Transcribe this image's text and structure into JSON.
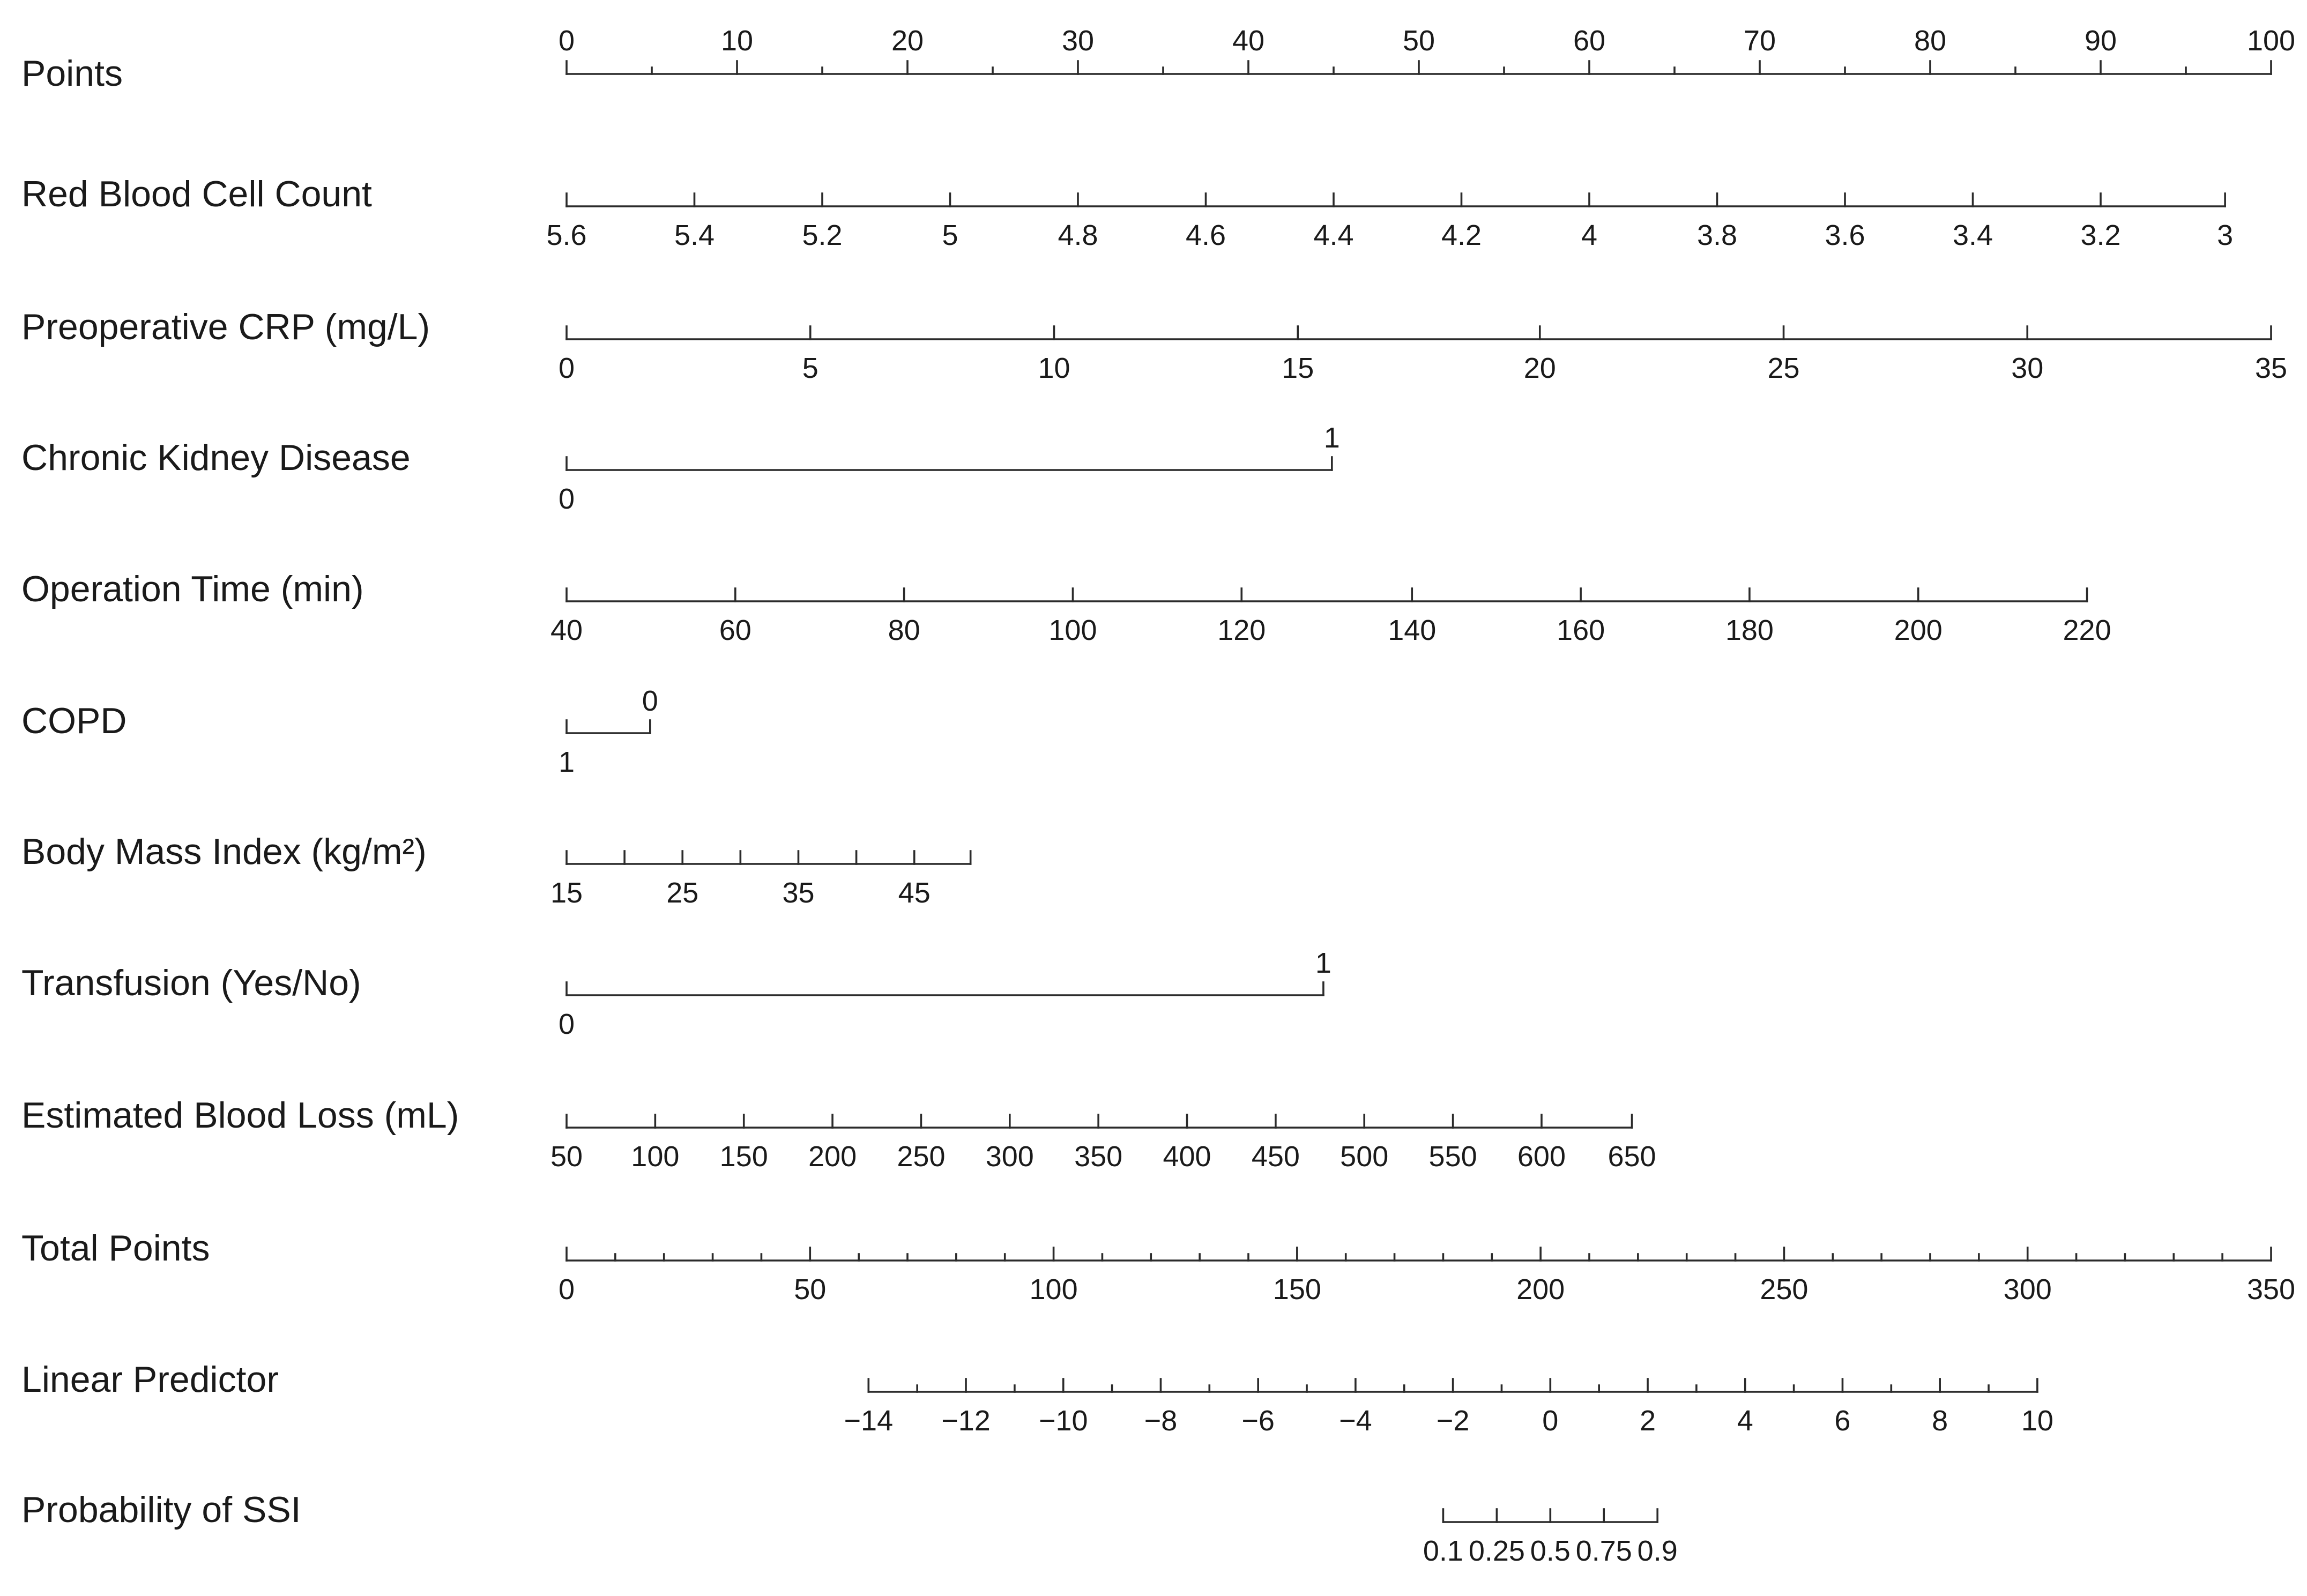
{
  "chart_data": {
    "type": "nomogram",
    "title": "",
    "points_scale": {
      "label": "Points",
      "min": 0,
      "max": 100,
      "major_ticks": [
        0,
        10,
        20,
        30,
        40,
        50,
        60,
        70,
        80,
        90,
        100
      ],
      "minor_step": 5
    },
    "rows": [
      {
        "label": "Red Blood Cell Count",
        "labels_position": "below",
        "ticks": [
          {
            "label": "5.6",
            "points": 0
          },
          {
            "label": "5.4",
            "points": 7.5
          },
          {
            "label": "5.2",
            "points": 15
          },
          {
            "label": "5",
            "points": 22.5
          },
          {
            "label": "4.8",
            "points": 30
          },
          {
            "label": "4.6",
            "points": 37.5
          },
          {
            "label": "4.4",
            "points": 45
          },
          {
            "label": "4.2",
            "points": 52.5
          },
          {
            "label": "4",
            "points": 60
          },
          {
            "label": "3.8",
            "points": 67.5
          },
          {
            "label": "3.6",
            "points": 75
          },
          {
            "label": "3.4",
            "points": 82.5
          },
          {
            "label": "3.2",
            "points": 90
          },
          {
            "label": "3",
            "points": 97.3
          }
        ]
      },
      {
        "label": "Preoperative CRP (mg/L)",
        "labels_position": "below",
        "ticks": [
          {
            "label": "0",
            "points": 0
          },
          {
            "label": "5",
            "points": 14.3
          },
          {
            "label": "10",
            "points": 28.6
          },
          {
            "label": "15",
            "points": 42.9
          },
          {
            "label": "20",
            "points": 57.1
          },
          {
            "label": "25",
            "points": 71.4
          },
          {
            "label": "30",
            "points": 85.7
          },
          {
            "label": "35",
            "points": 100
          }
        ]
      },
      {
        "label": "Chronic Kidney Disease",
        "labels_position": "split",
        "ticks": [
          {
            "label": "0",
            "points": 0,
            "side": "below"
          },
          {
            "label": "1",
            "points": 44.9,
            "side": "above"
          }
        ]
      },
      {
        "label": "Operation Time (min)",
        "labels_position": "below",
        "ticks": [
          {
            "label": "40",
            "points": 0
          },
          {
            "label": "60",
            "points": 9.9
          },
          {
            "label": "80",
            "points": 19.8
          },
          {
            "label": "100",
            "points": 29.7
          },
          {
            "label": "120",
            "points": 39.6
          },
          {
            "label": "140",
            "points": 49.6
          },
          {
            "label": "160",
            "points": 59.5
          },
          {
            "label": "180",
            "points": 69.4
          },
          {
            "label": "200",
            "points": 79.3
          },
          {
            "label": "220",
            "points": 89.2
          }
        ]
      },
      {
        "label": "COPD",
        "labels_position": "split",
        "ticks": [
          {
            "label": "1",
            "points": 0,
            "side": "below"
          },
          {
            "label": "0",
            "points": 4.9,
            "side": "above"
          }
        ]
      },
      {
        "label": "Body Mass Index (kg/m²)",
        "labels_position": "below",
        "ticks": [
          {
            "label": "15",
            "points": 0
          },
          {
            "label": "",
            "points": 3.4
          },
          {
            "label": "25",
            "points": 6.8
          },
          {
            "label": "",
            "points": 10.2
          },
          {
            "label": "35",
            "points": 13.6
          },
          {
            "label": "",
            "points": 17.0
          },
          {
            "label": "45",
            "points": 20.4
          },
          {
            "label": "",
            "points": 23.7
          }
        ]
      },
      {
        "label": "Transfusion (Yes/No)",
        "labels_position": "split",
        "ticks": [
          {
            "label": "0",
            "points": 0,
            "side": "below"
          },
          {
            "label": "1",
            "points": 44.4,
            "side": "above"
          }
        ]
      },
      {
        "label": "Estimated Blood Loss (mL)",
        "labels_position": "below",
        "ticks": [
          {
            "label": "50",
            "points": 0
          },
          {
            "label": "100",
            "points": 5.2
          },
          {
            "label": "150",
            "points": 10.4
          },
          {
            "label": "200",
            "points": 15.6
          },
          {
            "label": "250",
            "points": 20.8
          },
          {
            "label": "300",
            "points": 26.0
          },
          {
            "label": "350",
            "points": 31.2
          },
          {
            "label": "400",
            "points": 36.4
          },
          {
            "label": "450",
            "points": 41.6
          },
          {
            "label": "500",
            "points": 46.8
          },
          {
            "label": "550",
            "points": 52.0
          },
          {
            "label": "600",
            "points": 57.2
          },
          {
            "label": "650",
            "points": 62.5
          }
        ]
      }
    ],
    "total_points": {
      "label": "Total Points",
      "min": 0,
      "max": 350,
      "major_ticks": [
        0,
        50,
        100,
        150,
        200,
        250,
        300,
        350
      ],
      "minor_step": 10
    },
    "linear_predictor": {
      "label": "Linear Predictor",
      "ticks": [
        {
          "label": "−14",
          "total_points": 62
        },
        {
          "label": "−12",
          "total_points": 82
        },
        {
          "label": "−10",
          "total_points": 102
        },
        {
          "label": "−8",
          "total_points": 122
        },
        {
          "label": "−6",
          "total_points": 142
        },
        {
          "label": "−4",
          "total_points": 162
        },
        {
          "label": "−2",
          "total_points": 182
        },
        {
          "label": "0",
          "total_points": 202
        },
        {
          "label": "2",
          "total_points": 222
        },
        {
          "label": "4",
          "total_points": 242
        },
        {
          "label": "6",
          "total_points": 262
        },
        {
          "label": "8",
          "total_points": 282
        },
        {
          "label": "10",
          "total_points": 302
        }
      ],
      "minor_step_points": 10
    },
    "probability": {
      "label": "Probability of SSI",
      "ticks": [
        {
          "label": "0.1",
          "total_points": 180.0
        },
        {
          "label": "0.25",
          "total_points": 191.0
        },
        {
          "label": "0.5",
          "total_points": 202.0
        },
        {
          "label": "0.75",
          "total_points": 213.0
        },
        {
          "label": "0.9",
          "total_points": 224.0
        }
      ]
    }
  }
}
